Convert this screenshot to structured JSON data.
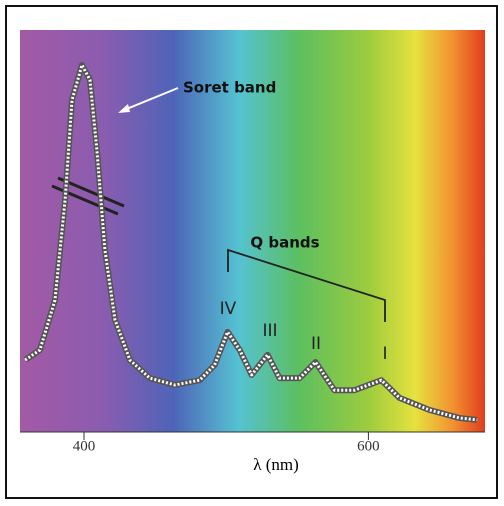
{
  "chart_data": {
    "type": "line",
    "xlabel": "λ (nm)",
    "annotations": [
      "Soret band",
      "Q bands",
      "IV",
      "III",
      "II",
      "I"
    ],
    "x": [
      358.6,
      369,
      379.6,
      386.7,
      391.6,
      398.6,
      404.2,
      409.1,
      414.7,
      421.8,
      432.3,
      446.3,
      463.9,
      481.4,
      491.9,
      501,
      509.5,
      517.9,
      529.1,
      537.5,
      551.6,
      562.8,
      576.1,
      590.2,
      609.1,
      621.8,
      642.8,
      663.9,
      676.5
    ],
    "series": [
      {
        "color": "#555555",
        "values": [
          17.9,
          20.4,
          32.8,
          57.7,
          82.6,
          91.3,
          87.6,
          70.1,
          45.3,
          27.9,
          17.9,
          13.4,
          11.7,
          12.9,
          16.7,
          24.9,
          20.4,
          14.2,
          19.2,
          13.4,
          13.4,
          17.4,
          10.4,
          10.4,
          12.9,
          8.5,
          5.5,
          3.5,
          3.0
        ]
      }
    ],
    "xlim": [
      355,
      682
    ],
    "xticks": [
      400,
      600
    ],
    "ylim": [
      0,
      100
    ]
  }
}
